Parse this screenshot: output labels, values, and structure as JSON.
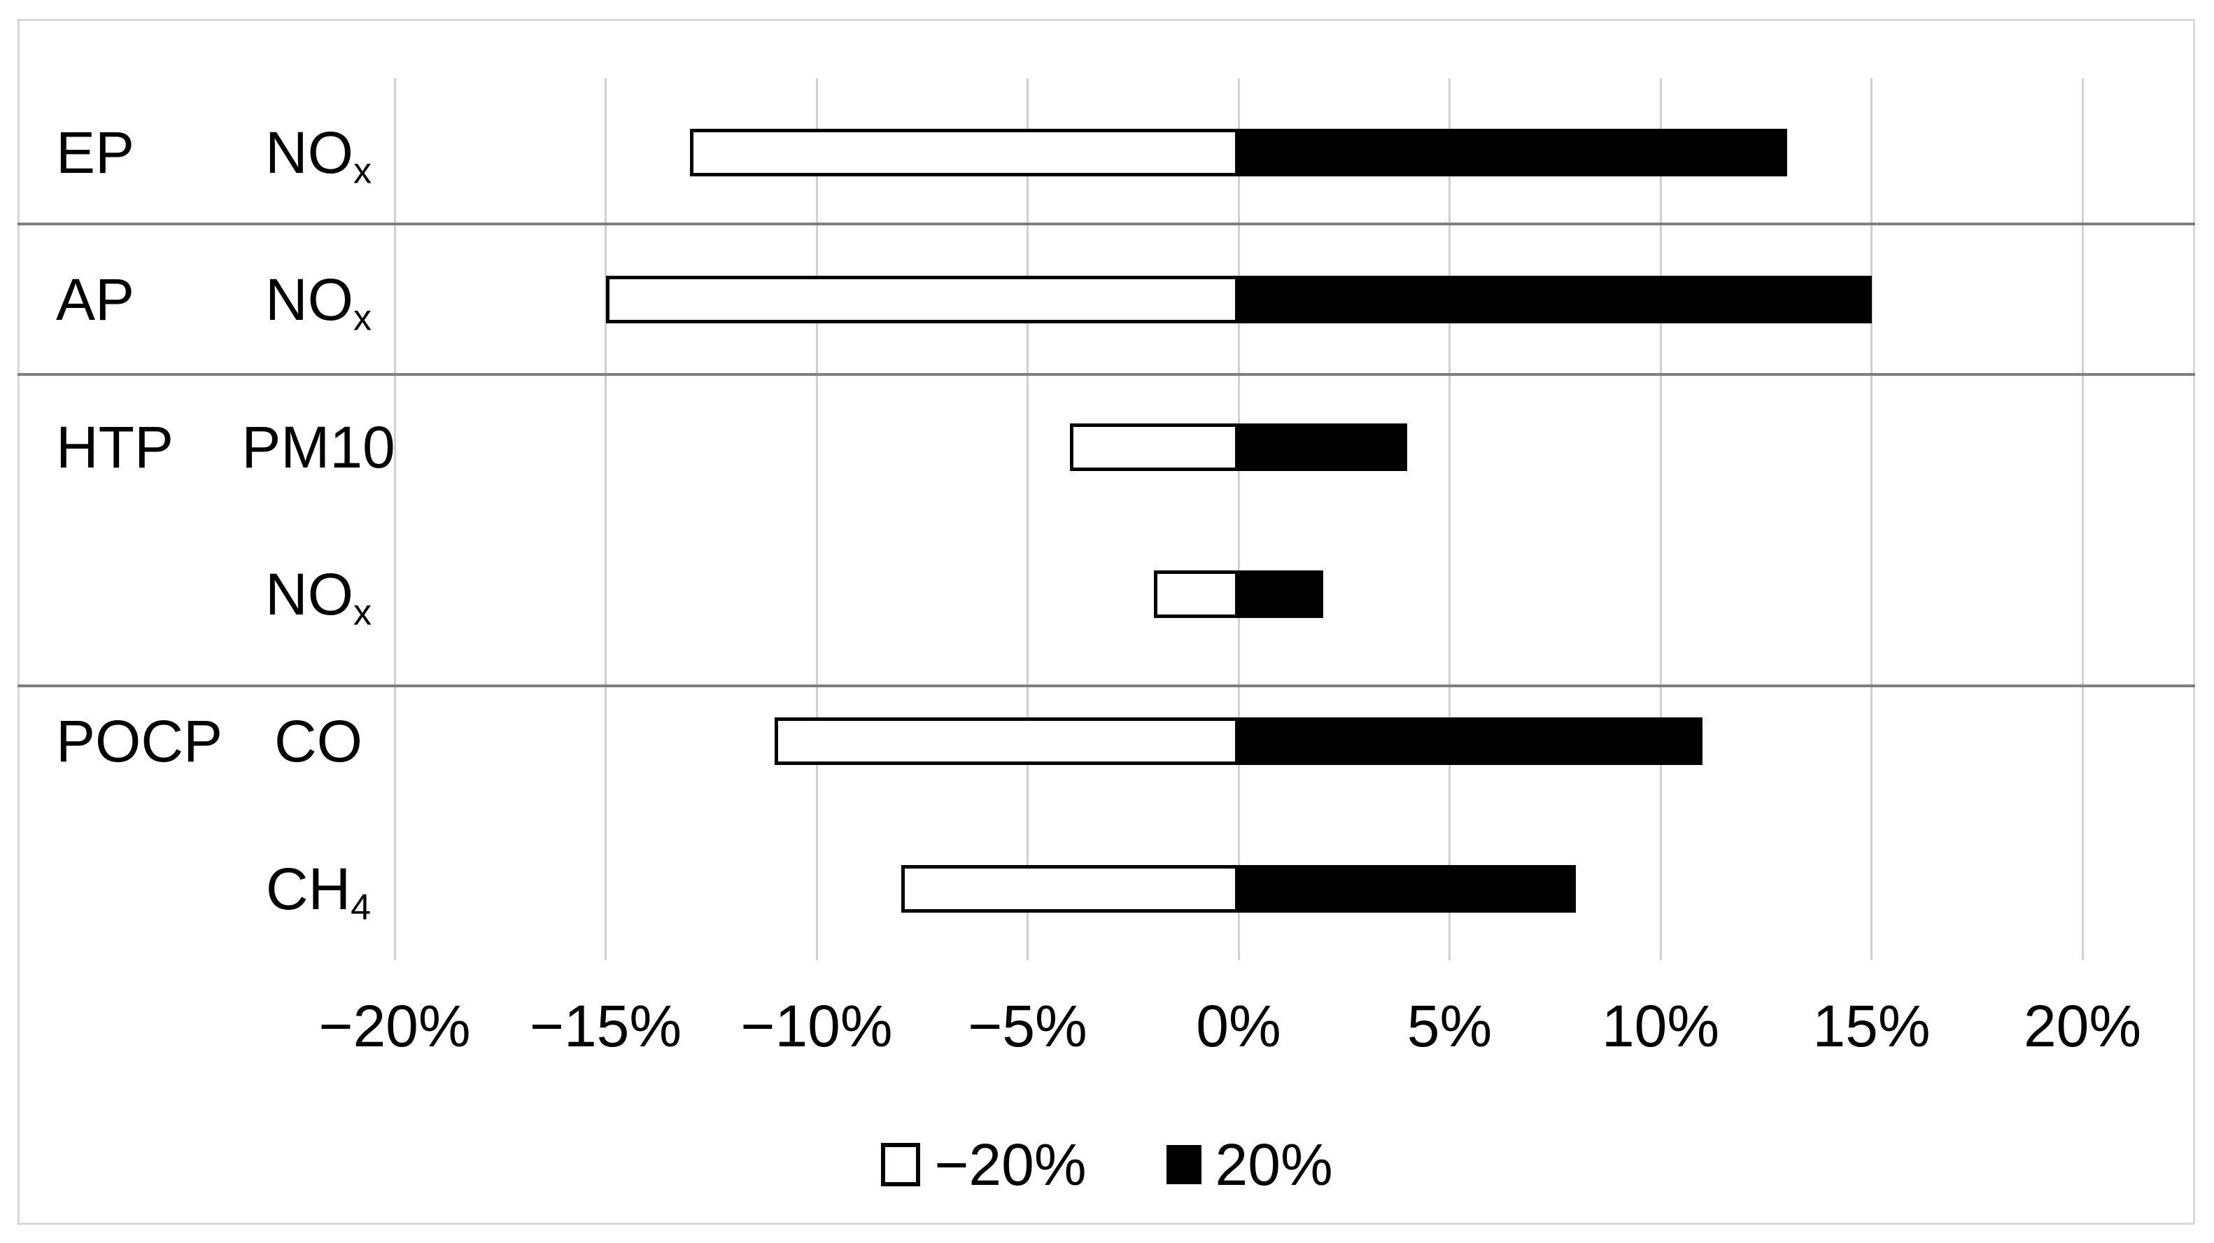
{
  "chart_data": {
    "type": "bar",
    "orientation": "horizontal",
    "title": "",
    "xlabel": "",
    "ylabel": "",
    "xlim": [
      -20,
      20
    ],
    "grid": "vertical",
    "x_axis": {
      "tick_values": [
        -20,
        -15,
        -10,
        -5,
        0,
        5,
        10,
        15,
        20
      ],
      "tick_labels": [
        "−20%",
        "−15%",
        "−10%",
        "−5%",
        "0%",
        "5%",
        "10%",
        "15%",
        "20%"
      ]
    },
    "categories": [
      "EP NOx",
      "AP NOx",
      "HTP PM10",
      "HTP NOx",
      "POCP CO",
      "POCP CH4"
    ],
    "rows": [
      {
        "group": "EP",
        "substance": "NOx",
        "substance_base": "NO",
        "substance_sub": "x",
        "low_pct": -13,
        "high_pct": 13
      },
      {
        "group": "AP",
        "substance": "NOx",
        "substance_base": "NO",
        "substance_sub": "x",
        "low_pct": -15,
        "high_pct": 15
      },
      {
        "group": "HTP",
        "substance": "PM10",
        "substance_base": "PM10",
        "substance_sub": "",
        "low_pct": -4,
        "high_pct": 4
      },
      {
        "group": "",
        "substance": "NOx",
        "substance_base": "NO",
        "substance_sub": "x",
        "low_pct": -2,
        "high_pct": 2
      },
      {
        "group": "POCP",
        "substance": "CO",
        "substance_base": "CO",
        "substance_sub": "",
        "low_pct": -11,
        "high_pct": 11
      },
      {
        "group": "",
        "substance": "CH4",
        "substance_base": "CH",
        "substance_sub": "4",
        "low_pct": -8,
        "high_pct": 8
      }
    ],
    "series": [
      {
        "name": "−20%",
        "values": [
          -13,
          -15,
          -4,
          -2,
          -11,
          -8
        ],
        "fill": "#ffffff"
      },
      {
        "name": "20%",
        "values": [
          13,
          15,
          4,
          2,
          11,
          8
        ],
        "fill": "#000000"
      }
    ],
    "group_separators_after_rows": [
      0,
      1,
      3
    ],
    "legend": {
      "position": "bottom",
      "items": [
        {
          "label": "−20%",
          "swatch": "white"
        },
        {
          "label": "20%",
          "swatch": "black"
        }
      ]
    }
  },
  "colors": {
    "background": "#ffffff",
    "frame_border": "#d9d9d9",
    "gridline": "#d0d0d0",
    "separator": "#7f7f7f",
    "bar_positive_fill": "#000000",
    "bar_negative_fill": "#ffffff",
    "bar_border": "#000000",
    "text": "#000000"
  }
}
